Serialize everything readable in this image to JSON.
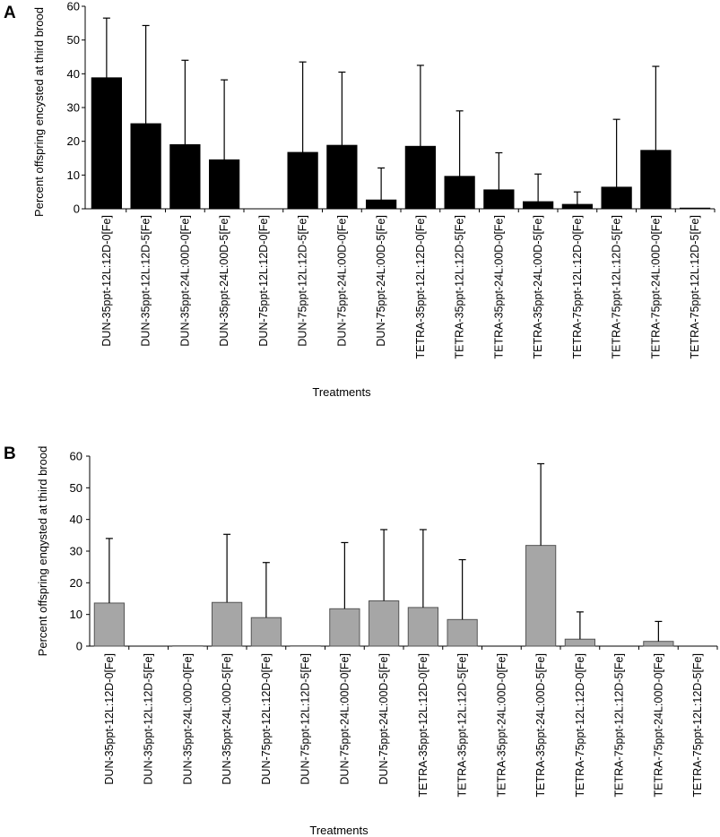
{
  "chart_data": [
    {
      "type": "bar",
      "panel_label": "A",
      "ylabel": "Percent offspring encysted at third brood",
      "xlabel": "Treatments",
      "ylim": [
        0,
        60
      ],
      "yticks": [
        0,
        10,
        20,
        30,
        40,
        50,
        60
      ],
      "bar_color": "#000000",
      "categories": [
        "DUN-35ppt-12L:12D-0[Fe]",
        "DUN-35ppt-12L:12D-5[Fe]",
        "DUN-35ppt-24L:00D-0[Fe]",
        "DUN-35ppt-24L:00D-5[Fe]",
        "DUN-75ppt-12L:12D-0[Fe]",
        "DUN-75ppt-12L:12D-5[Fe]",
        "DUN-75ppt-24L:00D-0[Fe]",
        "DUN-75ppt-24L:00D-5[Fe]",
        "TETRA-35ppt-12L:12D-0[Fe]",
        "TETRA-35ppt-12L:12D-5[Fe]",
        "TETRA-35ppt-24L:00D-0[Fe]",
        "TETRA-35ppt-24L:00D-5[Fe]",
        "TETRA-75ppt-12L:12D-0[Fe]",
        "TETRA-75ppt-12L:12D-5[Fe]",
        "TETRA-75ppt-24L:00D-0[Fe]",
        "TETRA-75ppt-12L:12D-5[Fe]"
      ],
      "values": [
        38.8,
        25.2,
        19.0,
        14.5,
        0,
        16.7,
        18.8,
        2.6,
        18.5,
        9.6,
        5.6,
        2.1,
        1.3,
        6.4,
        17.3,
        0.2
      ],
      "error_upper": [
        56.5,
        54.3,
        44.0,
        38.2,
        0,
        43.5,
        40.5,
        12.1,
        42.5,
        29.0,
        16.6,
        10.3,
        5.0,
        26.5,
        42.2,
        0.2
      ]
    },
    {
      "type": "bar",
      "panel_label": "B",
      "ylabel": "Percent offspring  enqysted at third  brood",
      "xlabel": "Treatments",
      "ylim": [
        0,
        60
      ],
      "yticks": [
        0,
        10,
        20,
        30,
        40,
        50,
        60
      ],
      "bar_color": "#a6a6a6",
      "categories": [
        "DUN-35ppt-12L:12D-0[Fe]",
        "DUN-35ppt-12L:12D-5[Fe]",
        "DUN-35ppt-24L:00D-0[Fe]",
        "DUN-35ppt-24L:00D-5[Fe]",
        "DUN-75ppt-12L:12D-0[Fe]",
        "DUN-75ppt-12L:12D-5[Fe]",
        "DUN-75ppt-24L:00D-0[Fe]",
        "DUN-75ppt-24L:00D-5[Fe]",
        "TETRA-35ppt-12L:12D-0[Fe]",
        "TETRA-35ppt-12L:12D-5[Fe]",
        "TETRA-35ppt-24L:00D-0[Fe]",
        "TETRA-35ppt-24L:00D-5[Fe]",
        "TETRA-75ppt-12L:12D-0[Fe]",
        "TETRA-75ppt-12L:12D-5[Fe]",
        "TETRA-75ppt-24L:00D-0[Fe]",
        "TETRA-75ppt-12L:12D-5[Fe]"
      ],
      "values": [
        13.6,
        0,
        0.1,
        13.8,
        9.0,
        0.1,
        11.8,
        14.3,
        12.2,
        8.4,
        0,
        31.8,
        2.2,
        0,
        1.5,
        0
      ],
      "error_upper": [
        34.0,
        0,
        0.1,
        35.3,
        26.4,
        0.1,
        32.7,
        36.8,
        36.8,
        27.3,
        0,
        57.6,
        10.8,
        0,
        7.8,
        0
      ]
    }
  ]
}
